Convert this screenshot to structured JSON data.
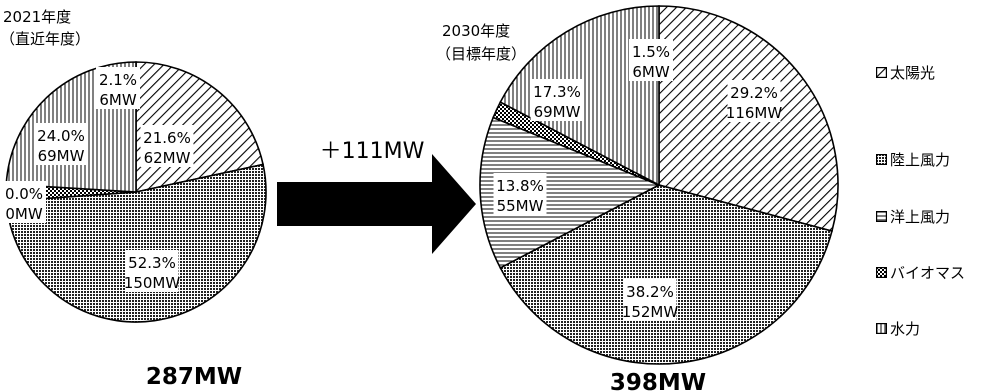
{
  "chart_data": [
    {
      "type": "pie",
      "title": "2021年度",
      "subtitle": "（直近年度）",
      "total_label": "287MW",
      "categories": [
        "太陽光",
        "陸上風力",
        "洋上風力",
        "バイオマス",
        "水力"
      ],
      "series": [
        {
          "values": [
            62,
            150,
            0,
            6,
            69
          ],
          "percent_labels": [
            "21.6%",
            "52.3%",
            "0.0%",
            "2.1%",
            "24.0%"
          ],
          "value_labels": [
            "62MW",
            "150MW",
            "0MW",
            "6MW",
            "69MW"
          ]
        }
      ]
    },
    {
      "type": "pie",
      "title": "2030年度",
      "subtitle": "（目標年度）",
      "total_label": "398MW",
      "categories": [
        "太陽光",
        "陸上風力",
        "洋上風力",
        "バイオマス",
        "水力"
      ],
      "series": [
        {
          "values": [
            116,
            152,
            55,
            6,
            69
          ],
          "percent_labels": [
            "29.2%",
            "38.2%",
            "13.8%",
            "1.5%",
            "17.3%"
          ],
          "value_labels": [
            "116MW",
            "152MW",
            "55MW",
            "6MW",
            "69MW"
          ]
        }
      ]
    }
  ],
  "arrow_label": "＋111MW",
  "legend": [
    "太陽光",
    "陸上風力",
    "洋上風力",
    "バイオマス",
    "水力"
  ]
}
